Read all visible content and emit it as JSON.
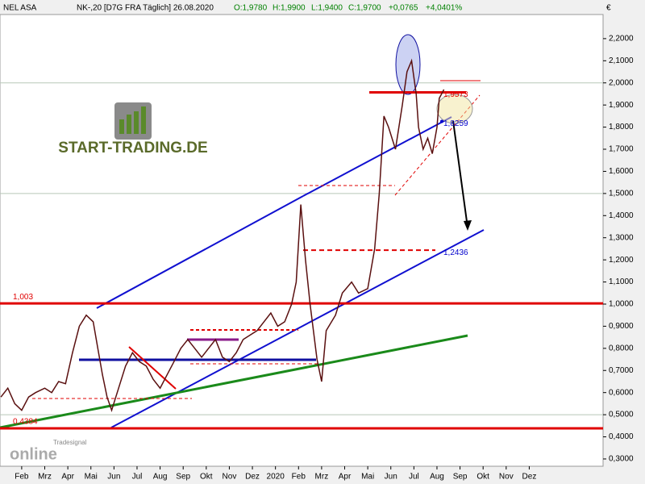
{
  "chart_data": {
    "type": "line",
    "title": "NEL ASA",
    "subtitle": "NK-,20 [D7G FRA  Täglich] 26.08.2020",
    "quote": [
      "O:1,9780",
      "H:1,9900",
      "L:1,9400",
      "C:1,9700",
      "+0,0765",
      "+4,0401%"
    ],
    "unit": "€",
    "logo": "START-TRADING.DE",
    "brand": [
      "Tradesignal",
      "online"
    ],
    "x": [
      1.1,
      1.4,
      1.7,
      2.0,
      2.3,
      2.6,
      3.0,
      3.3,
      3.6,
      3.9,
      4.2,
      4.5,
      4.8,
      5.1,
      5.3,
      5.5,
      5.7,
      5.9,
      6.2,
      6.5,
      6.8,
      7.1,
      7.4,
      7.7,
      8.0,
      8.3,
      8.6,
      8.9,
      9.2,
      9.5,
      9.8,
      10.1,
      10.4,
      10.7,
      11.0,
      11.3,
      11.6,
      11.9,
      12.2,
      12.5,
      12.8,
      13.1,
      13.4,
      13.7,
      13.9,
      14.1,
      14.3,
      14.5,
      14.8,
      15.0,
      15.2,
      15.6,
      15.9,
      16.3,
      16.6,
      17.0,
      17.3,
      17.5,
      17.7,
      17.9,
      18.2,
      18.5,
      18.7,
      18.9,
      19.1,
      19.2,
      19.4,
      19.6,
      19.8,
      20.0,
      20.1,
      20.3
    ],
    "series": [
      {
        "name": "NEL ASA",
        "color": "#5a1010",
        "values": [
          0.58,
          0.62,
          0.55,
          0.52,
          0.58,
          0.6,
          0.62,
          0.6,
          0.65,
          0.64,
          0.78,
          0.9,
          0.95,
          0.92,
          0.8,
          0.68,
          0.58,
          0.52,
          0.62,
          0.72,
          0.78,
          0.74,
          0.72,
          0.66,
          0.62,
          0.68,
          0.74,
          0.8,
          0.84,
          0.8,
          0.76,
          0.8,
          0.84,
          0.76,
          0.74,
          0.78,
          0.84,
          0.86,
          0.88,
          0.92,
          0.96,
          0.9,
          0.92,
          1.0,
          1.1,
          1.45,
          1.2,
          1.0,
          0.75,
          0.65,
          0.88,
          0.95,
          1.05,
          1.1,
          1.05,
          1.07,
          1.25,
          1.5,
          1.85,
          1.8,
          1.7,
          1.9,
          2.05,
          2.1,
          1.95,
          1.8,
          1.7,
          1.75,
          1.68,
          1.8,
          1.93,
          1.97
        ]
      }
    ],
    "levels": [
      {
        "value": 1.003,
        "label": "1,003",
        "color": "#e00000"
      },
      {
        "value": 0.4384,
        "label": "0,4384",
        "color": "#e00000"
      },
      {
        "value": 1.9573,
        "label": "1,9573",
        "color": "#e00000"
      },
      {
        "value": 1.8259,
        "label": "1,8259",
        "color": "#0000cc"
      },
      {
        "value": 1.2436,
        "label": "1,2436",
        "color": "#0000cc"
      }
    ],
    "xlim": [
      1.06,
      27.2
    ],
    "xticks": [
      {
        "value": 2,
        "label": "Feb"
      },
      {
        "value": 3,
        "label": "Mrz"
      },
      {
        "value": 4,
        "label": "Apr"
      },
      {
        "value": 5,
        "label": "Mai"
      },
      {
        "value": 6,
        "label": "Jun"
      },
      {
        "value": 7,
        "label": "Jul"
      },
      {
        "value": 8,
        "label": "Aug"
      },
      {
        "value": 9,
        "label": "Sep"
      },
      {
        "value": 10,
        "label": "Okt"
      },
      {
        "value": 11,
        "label": "Nov"
      },
      {
        "value": 12,
        "label": "Dez"
      },
      {
        "value": 13,
        "label": "2020"
      },
      {
        "value": 14,
        "label": "Feb"
      },
      {
        "value": 15,
        "label": "Mrz"
      },
      {
        "value": 16,
        "label": "Apr"
      },
      {
        "value": 17,
        "label": "Mai"
      },
      {
        "value": 18,
        "label": "Jun"
      },
      {
        "value": 19,
        "label": "Jul"
      },
      {
        "value": 20,
        "label": "Aug"
      },
      {
        "value": 21,
        "label": "Sep"
      },
      {
        "value": 22,
        "label": "Okt"
      },
      {
        "value": 23,
        "label": "Nov"
      },
      {
        "value": 24,
        "label": "Dez"
      }
    ],
    "ylim": [
      0.267,
      2.309
    ],
    "yticks": [
      {
        "value": 0.3,
        "label": "0,3000"
      },
      {
        "value": 0.4,
        "label": "0,4000"
      },
      {
        "value": 0.5,
        "label": "0,5000"
      },
      {
        "value": 0.6,
        "label": "0,6000"
      },
      {
        "value": 0.7,
        "label": "0,7000"
      },
      {
        "value": 0.8,
        "label": "0,8000"
      },
      {
        "value": 0.9,
        "label": "0,9000"
      },
      {
        "value": 1.0,
        "label": "1,0000"
      },
      {
        "value": 1.1,
        "label": "1,1000"
      },
      {
        "value": 1.2,
        "label": "1,2000"
      },
      {
        "value": 1.3,
        "label": "1,3000"
      },
      {
        "value": 1.4,
        "label": "1,4000"
      },
      {
        "value": 1.5,
        "label": "1,5000"
      },
      {
        "value": 1.6,
        "label": "1,6000"
      },
      {
        "value": 1.7,
        "label": "1,7000"
      },
      {
        "value": 1.8,
        "label": "1,8000"
      },
      {
        "value": 1.9,
        "label": "1,9000"
      },
      {
        "value": 2.0,
        "label": "2,0000"
      },
      {
        "value": 2.1,
        "label": "2,1000"
      },
      {
        "value": 2.2,
        "label": "2,2000"
      }
    ],
    "grid_major": [
      0.5,
      1,
      1.5,
      2
    ],
    "grid": true
  }
}
